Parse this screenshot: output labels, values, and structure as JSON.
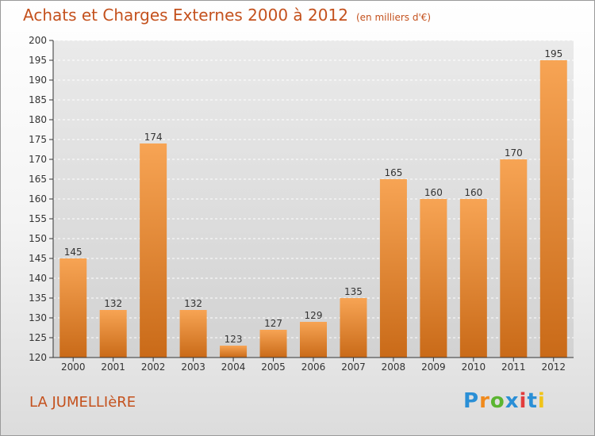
{
  "title": "Achats et Charges Externes 2000 à 2012",
  "unit": "(en milliers d'€)",
  "commune": "LA JUMELLIèRE",
  "logo": {
    "text": "Proxiti",
    "letters": [
      {
        "ch": "P",
        "color": "#2a8fd6"
      },
      {
        "ch": "r",
        "color": "#f08a1c"
      },
      {
        "ch": "o",
        "color": "#5bb531"
      },
      {
        "ch": "x",
        "color": "#2a8fd6"
      },
      {
        "ch": "i",
        "color": "#e23c3c"
      },
      {
        "ch": "t",
        "color": "#2a8fd6"
      },
      {
        "ch": "i",
        "color": "#f0c419"
      }
    ]
  },
  "colors": {
    "bar_top": "#f7a454",
    "bar_bottom": "#c96a18",
    "text_accent": "#c4511d",
    "grid": "#ffffff"
  },
  "chart_data": {
    "type": "bar",
    "categories": [
      "2000",
      "2001",
      "2002",
      "2003",
      "2004",
      "2005",
      "2006",
      "2007",
      "2008",
      "2009",
      "2010",
      "2011",
      "2012"
    ],
    "values": [
      145,
      132,
      174,
      132,
      123,
      127,
      129,
      135,
      165,
      160,
      160,
      170,
      195
    ],
    "ylim": [
      120,
      200
    ],
    "yticks": [
      120,
      125,
      130,
      135,
      140,
      145,
      150,
      155,
      160,
      165,
      170,
      175,
      180,
      185,
      190,
      195,
      200
    ],
    "grid": true
  }
}
